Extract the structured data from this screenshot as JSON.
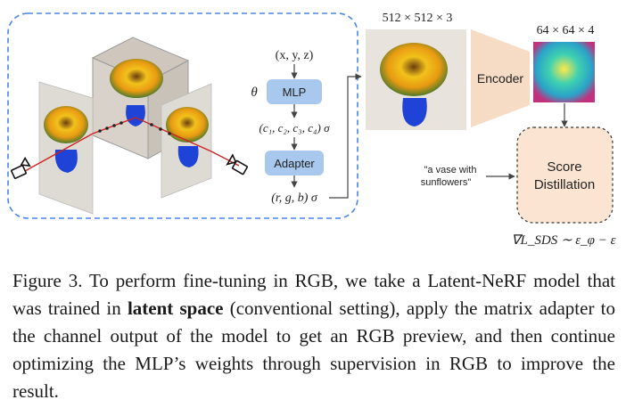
{
  "diagram": {
    "labels": {
      "xyz": "(x, y, z)",
      "theta": "θ",
      "mlp": "MLP",
      "latent_output": "(c₁, c₂, c₃, c₄) σ",
      "adapter": "Adapter",
      "rgb_output": "(r, g, b) σ",
      "image_size": "512 × 512 × 3",
      "encoder": "Encoder",
      "latent_size": "64 × 64 × 4",
      "prompt_line1": "\"a vase with",
      "prompt_line2": "sunflowers\"",
      "score_line1": "Score",
      "score_line2": "Distillation",
      "loss": "∇L_SDS ∼ ε_φ − ε"
    },
    "colors": {
      "dashed_border": "#4a86e8",
      "node_fill": "#a8c8ee",
      "encoder_fill": "#f6dcc4",
      "score_fill": "#fbe5d2",
      "ray": "#d02020"
    }
  },
  "caption": {
    "prefix": "Figure 3. To perform fine-tuning in RGB, we take a Latent-NeRF model that was trained in ",
    "bold": "latent space",
    "suffix": " (conventional setting), apply the matrix adapter to the channel output of the model to get an RGB preview, and then continue optimizing the MLP’s weights through supervision in RGB to improve the result."
  }
}
